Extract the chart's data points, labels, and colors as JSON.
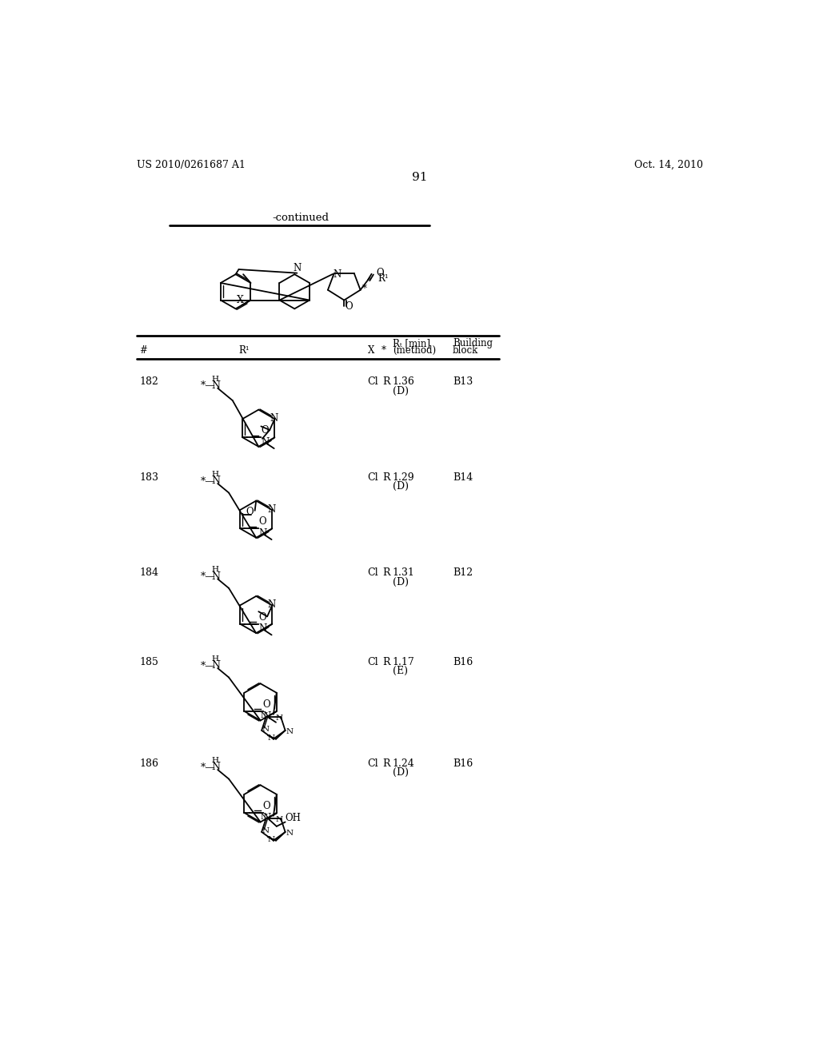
{
  "page_left": "US 2010/0261687 A1",
  "page_right": "Oct. 14, 2010",
  "page_number": "91",
  "continued_text": "-continued",
  "background_color": "#ffffff",
  "text_color": "#000000",
  "rows": [
    {
      "num": "182",
      "X": "Cl",
      "star": "R",
      "rt1": "1.36",
      "rt2": "(D)",
      "block": "B13"
    },
    {
      "num": "183",
      "X": "Cl",
      "star": "R",
      "rt1": "1.29",
      "rt2": "(D)",
      "block": "B14"
    },
    {
      "num": "184",
      "X": "Cl",
      "star": "R",
      "rt1": "1.31",
      "rt2": "(D)",
      "block": "B12"
    },
    {
      "num": "185",
      "X": "Cl",
      "star": "R",
      "rt1": "1.17",
      "rt2": "(E)",
      "block": "B16"
    },
    {
      "num": "186",
      "X": "Cl",
      "star": "R",
      "rt1": "1.24",
      "rt2": "(D)",
      "block": "B16"
    }
  ]
}
